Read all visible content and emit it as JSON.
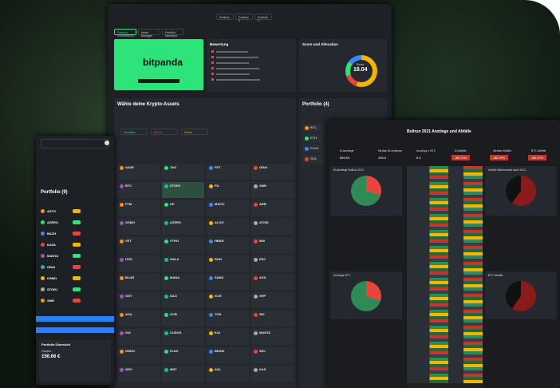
{
  "nav": {
    "tabs": [
      "Portfolio",
      "Portfolio 2",
      "Portfolio 3"
    ]
  },
  "main": {
    "subtabs": [
      "Portfolio Informationen",
      "Asset Manager",
      "Portfolio Übersicht"
    ],
    "brand": "bitpanda",
    "bewertung": {
      "title": "Bewertung"
    },
    "score": {
      "title": "Score und Allocation",
      "label": "Score",
      "value": "18.04"
    },
    "assets": {
      "title": "Wähle deine Krypto-Assets",
      "filters": [
        "Favoriten",
        "Bullrun",
        "Sektor"
      ],
      "coins": [
        "AAVE",
        "TAO",
        "FET",
        "ORAI",
        "BTC",
        "STORJ",
        "FIL",
        "XMR",
        "FTM",
        "OP",
        "MATIC",
        "ARB",
        "OSMO",
        "AZERO",
        "ALGO",
        "ATOM",
        "VET",
        "VTHO",
        "HBAR",
        "IMX",
        "UOS",
        "GALA",
        "RON",
        "ENJ",
        "BLUR",
        "MANA",
        "SAND",
        "AXS",
        "ONT",
        "DAO",
        "XLM",
        "XRP",
        "ADA",
        "OCB",
        "TON",
        "SEI",
        "SUI",
        "CUDOS",
        "KAI",
        "MANTA",
        "ONDO",
        "FLUX",
        "BEAM",
        "SKL",
        "GRX",
        "MNT",
        "AXL",
        "KAS"
      ]
    },
    "portfolio4": {
      "title": "Portfolio (4)",
      "coins": [
        "BTC",
        "ETH",
        "FLUX",
        "SOL"
      ]
    }
  },
  "left": {
    "title": "Portfolio (9)",
    "coins": [
      "ASTO",
      "AZERO",
      "BAZH",
      "KAVA",
      "MANTA",
      "ORAI",
      "OSMO",
      "STORJ",
      "XMR"
    ],
    "overview": "Portfolio Übersicht",
    "total_label": "Gesamt",
    "total": "156.66 €"
  },
  "right": {
    "title": "Bullrun 2021 Anstiege und Abfälle",
    "stats": [
      {
        "label": "Ø-Anstiege",
        "value": "855.63"
      },
      {
        "label": "Median Ø-Anstiege",
        "value": "336.6"
      },
      {
        "label": "Anstiege x BTC",
        "value": "8.6"
      },
      {
        "label": "Ø-Abfälle",
        "value": "-86.71%"
      },
      {
        "label": "Median Abfälle",
        "value": "-86.79%"
      },
      {
        "label": "BTC Abfälle",
        "value": "-86.17%"
      }
    ],
    "panels": [
      "Ø-Anstiege Bullrun 2021",
      "Anstiege BTC",
      "Abfälle Bärenmarkt nach 2021",
      "BTC Abfälle"
    ]
  }
}
